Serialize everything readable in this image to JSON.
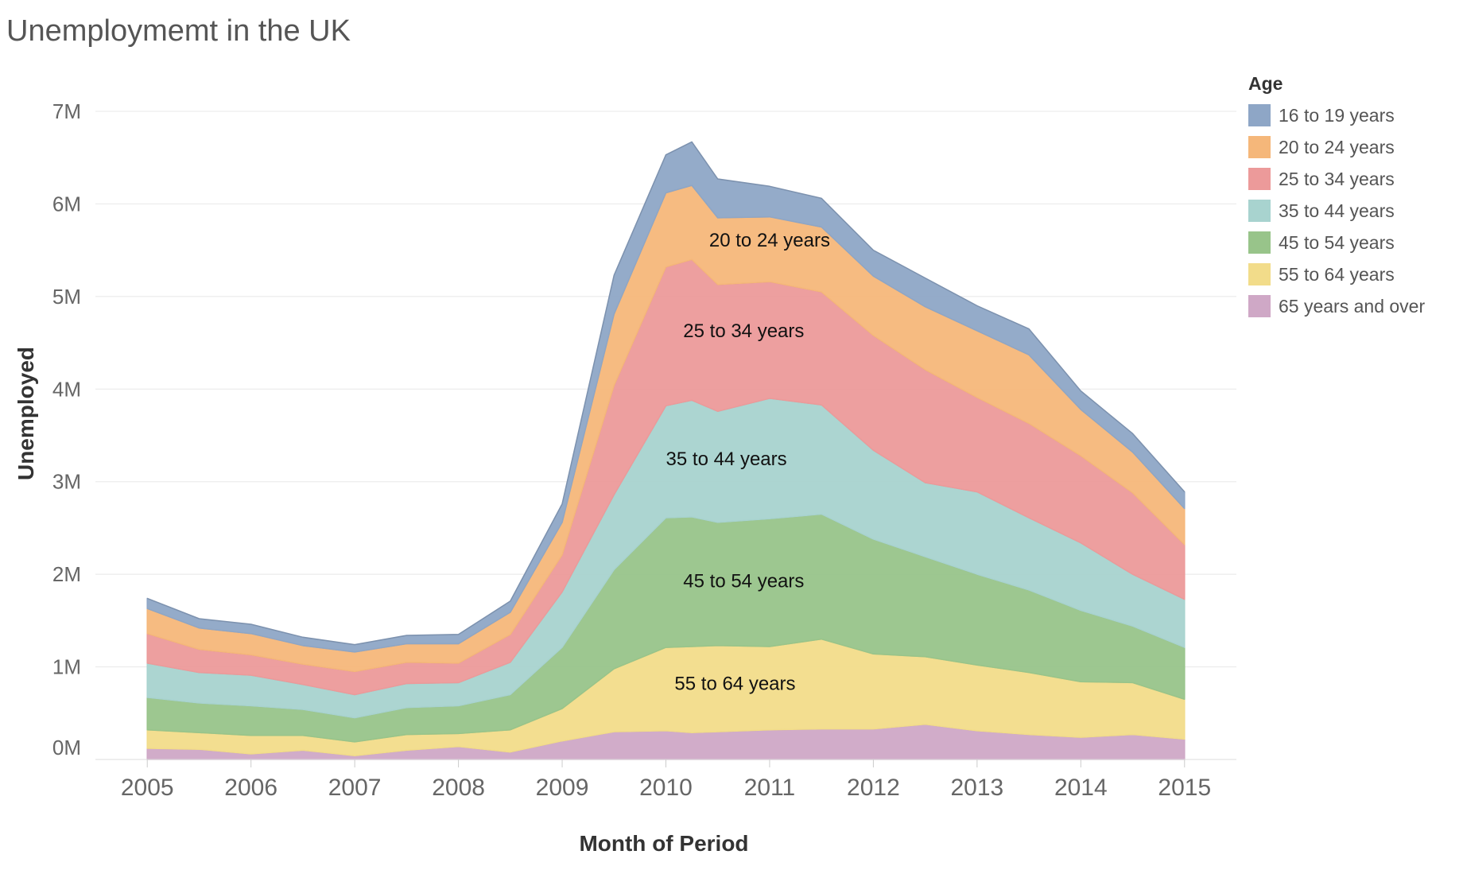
{
  "title": "Unemploymemt in the UK",
  "legend": {
    "title": "Age",
    "items": [
      {
        "label": "16 to 19 years",
        "color": "#8ea6c6"
      },
      {
        "label": "20 to 24 years",
        "color": "#f5b77a"
      },
      {
        "label": "25 to 34 years",
        "color": "#ec9a9a"
      },
      {
        "label": "35 to 44 years",
        "color": "#a8d3cf"
      },
      {
        "label": "45 to 54 years",
        "color": "#98c48a"
      },
      {
        "label": "55 to 64 years",
        "color": "#f2dc8a"
      },
      {
        "label": "65 years and over",
        "color": "#cfa8c6"
      }
    ]
  },
  "chart_data": {
    "type": "area",
    "stacked": true,
    "title": "Unemploymemt in the UK",
    "xlabel": "Month of Period",
    "ylabel": "Unemployed",
    "x_ticks": [
      "2005",
      "2006",
      "2007",
      "2008",
      "2009",
      "2010",
      "2011",
      "2012",
      "2013",
      "2014",
      "2015"
    ],
    "y_ticks": [
      "0M",
      "1M",
      "2M",
      "3M",
      "4M",
      "5M",
      "6M",
      "7M"
    ],
    "ylim": [
      0,
      7000000
    ],
    "xlim": [
      "2004-07",
      "2015-07"
    ],
    "grid": true,
    "legend_position": "right",
    "x": [
      "2005-01",
      "2005-07",
      "2006-01",
      "2006-07",
      "2007-01",
      "2007-07",
      "2008-01",
      "2008-07",
      "2009-01",
      "2009-07",
      "2010-01",
      "2010-04",
      "2010-07",
      "2011-01",
      "2011-07",
      "2012-01",
      "2012-07",
      "2013-01",
      "2013-07",
      "2014-01",
      "2014-07",
      "2015-01"
    ],
    "series": [
      {
        "name": "65 years and over",
        "values": [
          120000,
          110000,
          60000,
          100000,
          40000,
          100000,
          140000,
          80000,
          200000,
          300000,
          310000,
          290000,
          300000,
          320000,
          330000,
          330000,
          380000,
          310000,
          270000,
          240000,
          270000,
          220000
        ]
      },
      {
        "name": "55 to 64 years",
        "values": [
          200000,
          180000,
          200000,
          160000,
          150000,
          170000,
          140000,
          240000,
          350000,
          680000,
          900000,
          930000,
          930000,
          900000,
          970000,
          810000,
          730000,
          710000,
          670000,
          600000,
          560000,
          430000
        ]
      },
      {
        "name": "45 to 54 years",
        "values": [
          350000,
          320000,
          320000,
          280000,
          260000,
          290000,
          300000,
          380000,
          660000,
          1070000,
          1400000,
          1400000,
          1330000,
          1380000,
          1350000,
          1240000,
          1080000,
          980000,
          890000,
          770000,
          610000,
          560000
        ]
      },
      {
        "name": "35 to 44 years",
        "values": [
          370000,
          330000,
          330000,
          270000,
          250000,
          260000,
          250000,
          350000,
          600000,
          810000,
          1210000,
          1260000,
          1200000,
          1300000,
          1180000,
          960000,
          800000,
          890000,
          780000,
          730000,
          560000,
          520000
        ]
      },
      {
        "name": "25 to 34 years",
        "values": [
          320000,
          250000,
          220000,
          220000,
          250000,
          230000,
          210000,
          300000,
          400000,
          1180000,
          1500000,
          1520000,
          1370000,
          1260000,
          1220000,
          1240000,
          1220000,
          1020000,
          1020000,
          940000,
          880000,
          590000
        ]
      },
      {
        "name": "20 to 24 years",
        "values": [
          270000,
          230000,
          230000,
          200000,
          210000,
          200000,
          210000,
          240000,
          350000,
          770000,
          800000,
          800000,
          720000,
          700000,
          700000,
          640000,
          680000,
          720000,
          740000,
          500000,
          440000,
          390000
        ]
      },
      {
        "name": "16 to 19 years",
        "values": [
          110000,
          100000,
          100000,
          90000,
          80000,
          90000,
          100000,
          120000,
          200000,
          420000,
          410000,
          470000,
          420000,
          330000,
          310000,
          280000,
          310000,
          270000,
          280000,
          200000,
          200000,
          180000
        ]
      }
    ],
    "annotations": [
      {
        "text": "20 to 24 years",
        "x": "2011-01",
        "y": 5540000
      },
      {
        "text": "25 to 34 years",
        "x": "2010-10",
        "y": 4560000
      },
      {
        "text": "35 to 44 years",
        "x": "2010-08",
        "y": 3180000
      },
      {
        "text": "45 to 54 years",
        "x": "2010-10",
        "y": 1860000
      },
      {
        "text": "55 to 64 years",
        "x": "2010-09",
        "y": 750000
      }
    ]
  }
}
